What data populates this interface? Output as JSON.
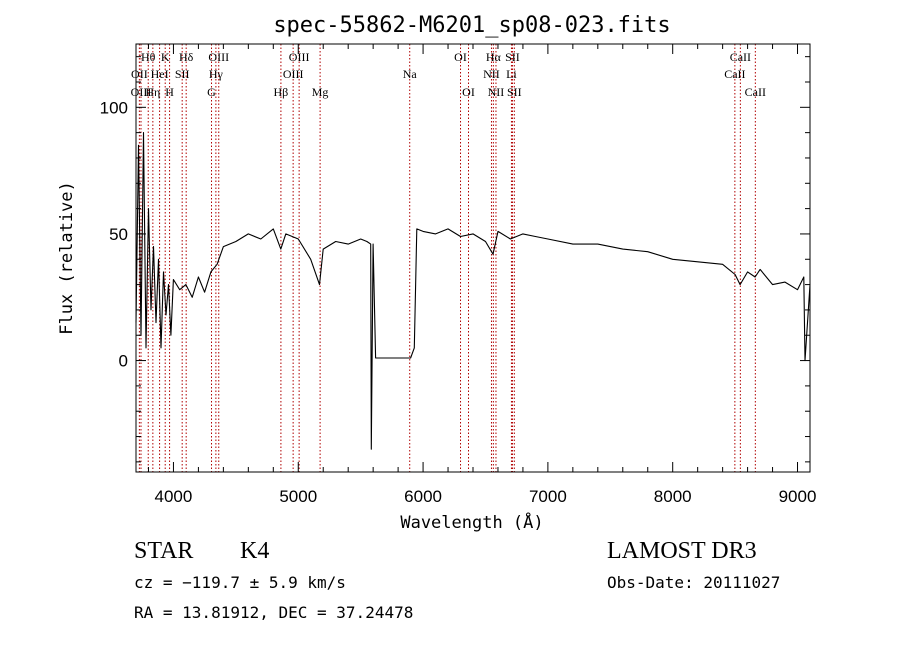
{
  "chart_data": {
    "type": "line",
    "title": "spec-55862-M6201_sp08-023.fits",
    "xlabel": "Wavelength (Å)",
    "ylabel": "Flux (relative)",
    "xlim": [
      3700,
      9100
    ],
    "ylim": [
      -44,
      125
    ],
    "x_ticks": [
      4000,
      5000,
      6000,
      7000,
      8000,
      9000
    ],
    "y_ticks": [
      0,
      50,
      100
    ],
    "grid": false,
    "spectrum": {
      "name": "flux",
      "x": [
        3700,
        3720,
        3740,
        3760,
        3780,
        3800,
        3820,
        3840,
        3860,
        3880,
        3900,
        3920,
        3940,
        3960,
        3980,
        4000,
        4050,
        4100,
        4150,
        4200,
        4250,
        4300,
        4350,
        4400,
        4500,
        4600,
        4700,
        4800,
        4860,
        4900,
        5000,
        5100,
        5170,
        5200,
        5300,
        5400,
        5500,
        5550,
        5580,
        5585,
        5600,
        5620,
        5700,
        5800,
        5900,
        5930,
        5950,
        6000,
        6100,
        6200,
        6300,
        6400,
        6500,
        6560,
        6600,
        6700,
        6800,
        6900,
        7000,
        7200,
        7400,
        7600,
        7800,
        8000,
        8200,
        8400,
        8500,
        8540,
        8600,
        8660,
        8700,
        8800,
        8900,
        9000,
        9050,
        9060,
        9100
      ],
      "y": [
        15,
        85,
        10,
        90,
        5,
        60,
        20,
        45,
        15,
        40,
        5,
        35,
        18,
        30,
        10,
        32,
        28,
        30,
        25,
        33,
        27,
        35,
        38,
        45,
        47,
        50,
        48,
        52,
        44,
        50,
        48,
        40,
        30,
        44,
        47,
        46,
        48,
        47,
        46,
        -35,
        46,
        1,
        1,
        1,
        1,
        5,
        52,
        51,
        50,
        52,
        49,
        50,
        47,
        42,
        51,
        48,
        50,
        49,
        48,
        46,
        46,
        44,
        43,
        40,
        39,
        38,
        34,
        30,
        35,
        33,
        36,
        30,
        31,
        28,
        33,
        0,
        30
      ]
    },
    "spectral_lines": [
      {
        "label": "Hθ",
        "wavelength": 3798,
        "row": 1
      },
      {
        "label": "OII",
        "wavelength": 3727,
        "row": 2
      },
      {
        "label": "OIII",
        "wavelength": 3740,
        "row": 3
      },
      {
        "label": "K",
        "wavelength": 3934,
        "row": 1
      },
      {
        "label": "HeI",
        "wavelength": 3889,
        "row": 2
      },
      {
        "label": "Hη",
        "wavelength": 3835,
        "row": 3
      },
      {
        "label": "Hδ",
        "wavelength": 4102,
        "row": 1
      },
      {
        "label": "SII",
        "wavelength": 4070,
        "row": 2
      },
      {
        "label": "H",
        "wavelength": 3969,
        "row": 3
      },
      {
        "label": "OIII",
        "wavelength": 4363,
        "row": 1
      },
      {
        "label": "Hγ",
        "wavelength": 4340,
        "row": 2
      },
      {
        "label": "G",
        "wavelength": 4305,
        "row": 3
      },
      {
        "label": "Hβ",
        "wavelength": 4861,
        "row": 3
      },
      {
        "label": "OIII",
        "wavelength": 5007,
        "row": 1
      },
      {
        "label": "OIII",
        "wavelength": 4959,
        "row": 2
      },
      {
        "label": "Mg",
        "wavelength": 5175,
        "row": 3
      },
      {
        "label": "Na",
        "wavelength": 5893,
        "row": 2
      },
      {
        "label": "OI",
        "wavelength": 6300,
        "row": 1
      },
      {
        "label": "OI",
        "wavelength": 6364,
        "row": 3
      },
      {
        "label": "Hα",
        "wavelength": 6563,
        "row": 1
      },
      {
        "label": "NII",
        "wavelength": 6548,
        "row": 2
      },
      {
        "label": "NII",
        "wavelength": 6584,
        "row": 3
      },
      {
        "label": "SII",
        "wavelength": 6716,
        "row": 1
      },
      {
        "label": "Li",
        "wavelength": 6708,
        "row": 2
      },
      {
        "label": "SII",
        "wavelength": 6731,
        "row": 3
      },
      {
        "label": "CaII",
        "wavelength": 8542,
        "row": 1
      },
      {
        "label": "CaII",
        "wavelength": 8498,
        "row": 2
      },
      {
        "label": "CaII",
        "wavelength": 8662,
        "row": 3
      }
    ]
  },
  "info": {
    "class_label": "STAR",
    "subclass": "K4",
    "survey": "LAMOST DR3",
    "redshift": "cz = −119.7 ± 5.9 km/s",
    "obs_date": "Obs-Date: 20111027",
    "coords": "RA =  13.81912, DEC =  37.24478"
  },
  "colors": {
    "spectrum": "#000000",
    "line_marker": "#b00000",
    "axes": "#000000"
  }
}
